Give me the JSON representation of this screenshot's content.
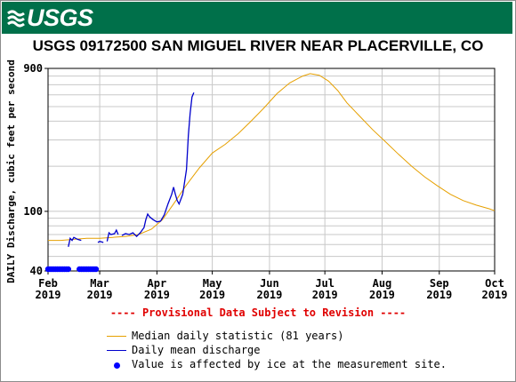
{
  "header": {
    "logo_text": "USGS"
  },
  "chart_data": {
    "type": "line",
    "title": "USGS 09172500 SAN MIGUEL RIVER NEAR PLACERVILLE, CO",
    "ylabel": "DAILY Discharge, cubic feet per second",
    "xlabel": "",
    "y_scale": "log",
    "ylim": [
      40,
      900
    ],
    "y_ticks": [
      {
        "value": 40,
        "label": "40"
      },
      {
        "value": 100,
        "label": "100"
      },
      {
        "value": 900,
        "label": "900"
      }
    ],
    "x_range": [
      "2019-02-01",
      "2019-10-01"
    ],
    "x_ticks": [
      {
        "date": "2019-02-01",
        "month": "Feb",
        "year": "2019"
      },
      {
        "date": "2019-03-01",
        "month": "Mar",
        "year": "2019"
      },
      {
        "date": "2019-04-01",
        "month": "Apr",
        "year": "2019"
      },
      {
        "date": "2019-05-01",
        "month": "May",
        "year": "2019"
      },
      {
        "date": "2019-06-01",
        "month": "Jun",
        "year": "2019"
      },
      {
        "date": "2019-07-01",
        "month": "Jul",
        "year": "2019"
      },
      {
        "date": "2019-08-01",
        "month": "Aug",
        "year": "2019"
      },
      {
        "date": "2019-09-01",
        "month": "Sep",
        "year": "2019"
      },
      {
        "date": "2019-10-01",
        "month": "Oct",
        "year": "2019"
      }
    ],
    "grid": true,
    "series": [
      {
        "name": "Median daily statistic (81 years)",
        "color": "#e6a000",
        "points": [
          [
            "2019-02-01",
            64
          ],
          [
            "2019-02-08",
            64
          ],
          [
            "2019-02-15",
            65
          ],
          [
            "2019-02-22",
            66
          ],
          [
            "2019-03-01",
            66
          ],
          [
            "2019-03-08",
            67
          ],
          [
            "2019-03-15",
            68
          ],
          [
            "2019-03-22",
            70
          ],
          [
            "2019-03-29",
            76
          ],
          [
            "2019-04-04",
            88
          ],
          [
            "2019-04-10",
            112
          ],
          [
            "2019-04-17",
            150
          ],
          [
            "2019-04-24",
            195
          ],
          [
            "2019-05-01",
            245
          ],
          [
            "2019-05-08",
            280
          ],
          [
            "2019-05-15",
            330
          ],
          [
            "2019-05-22",
            400
          ],
          [
            "2019-05-29",
            490
          ],
          [
            "2019-06-05",
            610
          ],
          [
            "2019-06-12",
            720
          ],
          [
            "2019-06-19",
            800
          ],
          [
            "2019-06-23",
            830
          ],
          [
            "2019-06-28",
            810
          ],
          [
            "2019-07-03",
            740
          ],
          [
            "2019-07-08",
            640
          ],
          [
            "2019-07-13",
            530
          ],
          [
            "2019-07-20",
            430
          ],
          [
            "2019-07-27",
            350
          ],
          [
            "2019-08-03",
            290
          ],
          [
            "2019-08-10",
            240
          ],
          [
            "2019-08-17",
            200
          ],
          [
            "2019-08-24",
            170
          ],
          [
            "2019-08-31",
            148
          ],
          [
            "2019-09-07",
            130
          ],
          [
            "2019-09-14",
            118
          ],
          [
            "2019-09-21",
            110
          ],
          [
            "2019-09-28",
            104
          ],
          [
            "2019-10-01",
            101
          ]
        ]
      },
      {
        "name": "Daily mean discharge",
        "color": "#0000cc",
        "segments": [
          [
            [
              "2019-02-12",
              58
            ],
            [
              "2019-02-13",
              66
            ],
            [
              "2019-02-14",
              64
            ],
            [
              "2019-02-15",
              67
            ],
            [
              "2019-02-17",
              65
            ],
            [
              "2019-02-19",
              64
            ]
          ],
          [
            [
              "2019-02-28",
              62
            ],
            [
              "2019-03-01",
              63
            ],
            [
              "2019-03-03",
              62
            ]
          ],
          [
            [
              "2019-03-05",
              63
            ],
            [
              "2019-03-06",
              72
            ],
            [
              "2019-03-07",
              70
            ],
            [
              "2019-03-09",
              71
            ],
            [
              "2019-03-10",
              75
            ],
            [
              "2019-03-11",
              70
            ]
          ],
          [
            [
              "2019-03-13",
              69
            ],
            [
              "2019-03-15",
              71
            ],
            [
              "2019-03-17",
              70
            ],
            [
              "2019-03-19",
              72
            ],
            [
              "2019-03-21",
              68
            ],
            [
              "2019-03-23",
              72
            ],
            [
              "2019-03-25",
              78
            ],
            [
              "2019-03-26",
              88
            ],
            [
              "2019-03-27",
              96
            ],
            [
              "2019-03-28",
              92
            ],
            [
              "2019-03-30",
              88
            ],
            [
              "2019-04-01",
              85
            ],
            [
              "2019-04-03",
              86
            ],
            [
              "2019-04-05",
              95
            ],
            [
              "2019-04-07",
              112
            ],
            [
              "2019-04-09",
              130
            ],
            [
              "2019-04-10",
              145
            ],
            [
              "2019-04-11",
              130
            ],
            [
              "2019-04-12",
              118
            ],
            [
              "2019-04-13",
              112
            ],
            [
              "2019-04-15",
              130
            ],
            [
              "2019-04-17",
              190
            ],
            [
              "2019-04-18",
              320
            ],
            [
              "2019-04-19",
              450
            ],
            [
              "2019-04-20",
              580
            ],
            [
              "2019-04-21",
              620
            ]
          ]
        ]
      }
    ],
    "ice_markers": [
      [
        "2019-02-01",
        40
      ],
      [
        "2019-02-02",
        40
      ],
      [
        "2019-02-03",
        40
      ],
      [
        "2019-02-04",
        40
      ],
      [
        "2019-02-05",
        40
      ],
      [
        "2019-02-06",
        40
      ],
      [
        "2019-02-07",
        40
      ],
      [
        "2019-02-08",
        40
      ],
      [
        "2019-02-09",
        40
      ],
      [
        "2019-02-10",
        40
      ],
      [
        "2019-02-11",
        40
      ],
      [
        "2019-02-12",
        40
      ],
      [
        "2019-02-18",
        40
      ],
      [
        "2019-02-19",
        40
      ],
      [
        "2019-02-20",
        40
      ],
      [
        "2019-02-21",
        40
      ],
      [
        "2019-02-22",
        40
      ],
      [
        "2019-02-23",
        40
      ],
      [
        "2019-02-24",
        40
      ],
      [
        "2019-02-25",
        40
      ],
      [
        "2019-02-26",
        40
      ],
      [
        "2019-02-27",
        40
      ]
    ],
    "provisional_note": "---- Provisional Data Subject to Revision ----",
    "legend": [
      {
        "label": "Median daily statistic (81 years)",
        "kind": "line",
        "color": "#e6a000"
      },
      {
        "label": "Daily mean discharge",
        "kind": "line",
        "color": "#0000cc"
      },
      {
        "label": "Value is affected by ice at the measurement site.",
        "kind": "dot",
        "color": "#0000ff"
      }
    ]
  }
}
